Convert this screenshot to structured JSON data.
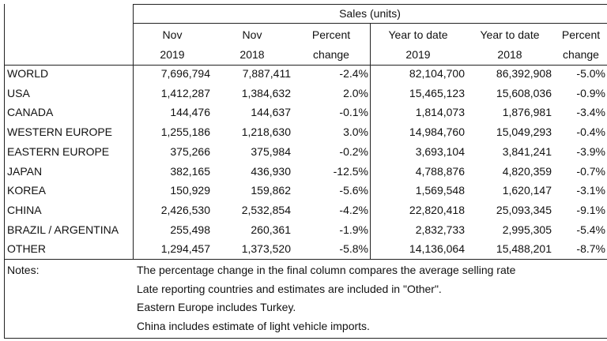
{
  "table": {
    "title": "Sales (units)",
    "header_row1": [
      "Nov",
      "Nov",
      "Percent",
      "Year to date",
      "Year to date",
      "Percent"
    ],
    "header_row2": [
      "2019",
      "2018",
      "change",
      "2019",
      "2018",
      "change"
    ],
    "rows": [
      [
        "WORLD",
        "7,696,794",
        "7,887,411",
        "-2.4%",
        "82,104,700",
        "86,392,908",
        "-5.0%"
      ],
      [
        "USA",
        "1,412,287",
        "1,384,632",
        "2.0%",
        "15,465,123",
        "15,608,036",
        "-0.9%"
      ],
      [
        "CANADA",
        "144,476",
        "144,637",
        "-0.1%",
        "1,814,073",
        "1,876,981",
        "-3.4%"
      ],
      [
        "WESTERN EUROPE",
        "1,255,186",
        "1,218,630",
        "3.0%",
        "14,984,760",
        "15,049,293",
        "-0.4%"
      ],
      [
        "EASTERN EUROPE",
        "375,266",
        "375,984",
        "-0.2%",
        "3,693,104",
        "3,841,241",
        "-3.9%"
      ],
      [
        "JAPAN",
        "382,165",
        "436,930",
        "-12.5%",
        "4,788,876",
        "4,820,359",
        "-0.7%"
      ],
      [
        "KOREA",
        "150,929",
        "159,862",
        "-5.6%",
        "1,569,548",
        "1,620,147",
        "-3.1%"
      ],
      [
        "CHINA",
        "2,426,530",
        "2,532,854",
        "-4.2%",
        "22,820,418",
        "25,093,345",
        "-9.1%"
      ],
      [
        "BRAZIL / ARGENTINA",
        "255,498",
        "260,361",
        "-1.9%",
        "2,832,733",
        "2,995,305",
        "-5.4%"
      ],
      [
        "OTHER",
        "1,294,457",
        "1,373,520",
        "-5.8%",
        "14,136,064",
        "15,488,201",
        "-8.7%"
      ]
    ],
    "notes_label": "Notes:",
    "notes": [
      "The percentage change in the final column compares the average selling rate",
      "Late reporting countries and estimates are included in \"Other\".",
      "Eastern Europe includes Turkey.",
      "China includes estimate of light vehicle imports."
    ]
  }
}
